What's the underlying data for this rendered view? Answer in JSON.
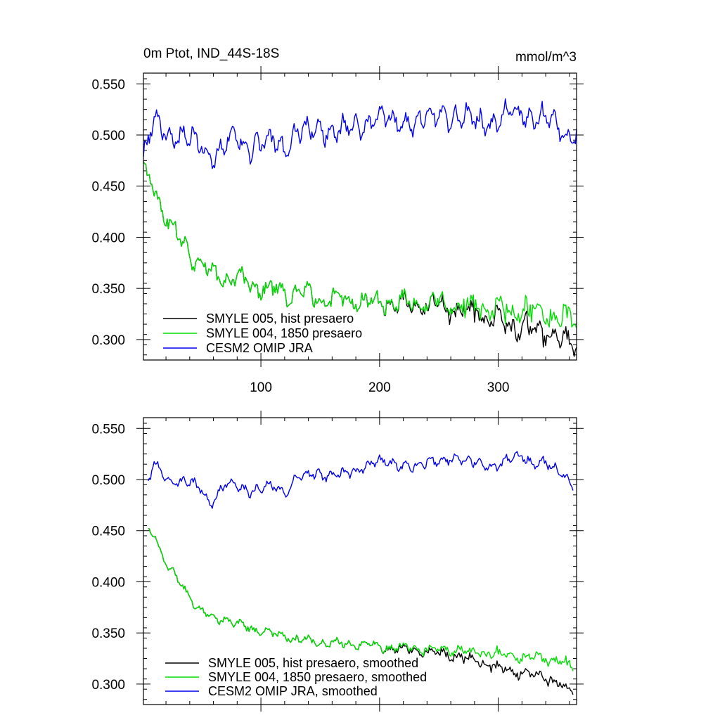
{
  "colors": {
    "hist": "#000000",
    "c1850": "#00dd00",
    "omip": "#0000ee"
  },
  "chart_data": [
    {
      "type": "line",
      "title": "0m Ptot, IND_44S-18S",
      "units": "mmol/m^3",
      "xlim": [
        1,
        366
      ],
      "ylim": [
        0.28,
        0.5605
      ],
      "yticks": [
        0.3,
        0.35,
        0.4,
        0.45,
        0.5,
        0.55
      ],
      "ytick_labels": [
        "0.300",
        "0.350",
        "0.400",
        "0.450",
        "0.500",
        "0.550"
      ],
      "xticks": [
        100,
        200,
        300
      ],
      "xtick_labels": [
        "100",
        "200",
        "300"
      ],
      "legend_position": "bottom-left",
      "series": [
        {
          "name": "SMYLE 005, hist presaero",
          "color": "#000000",
          "anchors": [
            [
              1,
              0.462
            ],
            [
              10,
              0.45
            ],
            [
              20,
              0.42
            ],
            [
              30,
              0.4
            ],
            [
              40,
              0.385
            ],
            [
              50,
              0.372
            ],
            [
              60,
              0.365
            ],
            [
              70,
              0.362
            ],
            [
              80,
              0.358
            ],
            [
              90,
              0.355
            ],
            [
              100,
              0.352
            ],
            [
              110,
              0.348
            ],
            [
              120,
              0.346
            ],
            [
              130,
              0.344
            ],
            [
              140,
              0.343
            ],
            [
              150,
              0.341
            ],
            [
              160,
              0.34
            ],
            [
              170,
              0.339
            ],
            [
              180,
              0.339
            ],
            [
              190,
              0.338
            ],
            [
              200,
              0.337
            ],
            [
              210,
              0.335
            ],
            [
              220,
              0.334
            ],
            [
              230,
              0.333
            ],
            [
              240,
              0.332
            ],
            [
              250,
              0.331
            ],
            [
              260,
              0.33
            ],
            [
              270,
              0.328
            ],
            [
              280,
              0.325
            ],
            [
              290,
              0.322
            ],
            [
              300,
              0.318
            ],
            [
              310,
              0.315
            ],
            [
              320,
              0.313
            ],
            [
              330,
              0.31
            ],
            [
              340,
              0.306
            ],
            [
              350,
              0.302
            ],
            [
              360,
              0.292
            ],
            [
              366,
              0.295
            ]
          ],
          "noise": 0.009,
          "seed": 1
        },
        {
          "name": "SMYLE 004, 1850 presaero",
          "color": "#00dd00",
          "anchors": [
            [
              1,
              0.462
            ],
            [
              10,
              0.45
            ],
            [
              20,
              0.42
            ],
            [
              30,
              0.4
            ],
            [
              40,
              0.385
            ],
            [
              50,
              0.372
            ],
            [
              60,
              0.365
            ],
            [
              70,
              0.362
            ],
            [
              80,
              0.358
            ],
            [
              90,
              0.355
            ],
            [
              100,
              0.352
            ],
            [
              110,
              0.348
            ],
            [
              120,
              0.346
            ],
            [
              130,
              0.344
            ],
            [
              140,
              0.343
            ],
            [
              150,
              0.341
            ],
            [
              160,
              0.34
            ],
            [
              170,
              0.339
            ],
            [
              180,
              0.339
            ],
            [
              190,
              0.338
            ],
            [
              200,
              0.337
            ],
            [
              210,
              0.336
            ],
            [
              220,
              0.336
            ],
            [
              230,
              0.335
            ],
            [
              240,
              0.334
            ],
            [
              250,
              0.334
            ],
            [
              260,
              0.333
            ],
            [
              270,
              0.332
            ],
            [
              280,
              0.331
            ],
            [
              290,
              0.33
            ],
            [
              300,
              0.329
            ],
            [
              310,
              0.328
            ],
            [
              320,
              0.327
            ],
            [
              330,
              0.326
            ],
            [
              340,
              0.324
            ],
            [
              350,
              0.322
            ],
            [
              360,
              0.318
            ],
            [
              366,
              0.32
            ]
          ],
          "noise": 0.009,
          "seed": 2
        },
        {
          "name": "CESM2 OMIP JRA",
          "color": "#0000ee",
          "anchors": [
            [
              1,
              0.478
            ],
            [
              10,
              0.515
            ],
            [
              20,
              0.502
            ],
            [
              30,
              0.498
            ],
            [
              40,
              0.497
            ],
            [
              50,
              0.49
            ],
            [
              60,
              0.48
            ],
            [
              70,
              0.492
            ],
            [
              80,
              0.495
            ],
            [
              90,
              0.49
            ],
            [
              100,
              0.492
            ],
            [
              110,
              0.494
            ],
            [
              120,
              0.488
            ],
            [
              130,
              0.505
            ],
            [
              140,
              0.503
            ],
            [
              150,
              0.505
            ],
            [
              160,
              0.505
            ],
            [
              170,
              0.505
            ],
            [
              180,
              0.505
            ],
            [
              190,
              0.515
            ],
            [
              200,
              0.518
            ],
            [
              210,
              0.512
            ],
            [
              220,
              0.515
            ],
            [
              230,
              0.513
            ],
            [
              240,
              0.515
            ],
            [
              250,
              0.52
            ],
            [
              260,
              0.52
            ],
            [
              270,
              0.515
            ],
            [
              280,
              0.515
            ],
            [
              290,
              0.515
            ],
            [
              300,
              0.512
            ],
            [
              310,
              0.522
            ],
            [
              320,
              0.525
            ],
            [
              330,
              0.515
            ],
            [
              340,
              0.515
            ],
            [
              350,
              0.51
            ],
            [
              360,
              0.5
            ],
            [
              366,
              0.5
            ]
          ],
          "noise": 0.011,
          "seed": 3
        }
      ]
    },
    {
      "type": "line",
      "xlim": [
        1,
        366
      ],
      "ylim": [
        0.28,
        0.5605
      ],
      "yticks": [
        0.3,
        0.35,
        0.4,
        0.45,
        0.5,
        0.55
      ],
      "ytick_labels": [
        "0.300",
        "0.350",
        "0.400",
        "0.450",
        "0.500",
        "0.550"
      ],
      "xticks": [
        100,
        200,
        300
      ],
      "legend_position": "bottom-left",
      "series": [
        {
          "name": "SMYLE 005, hist presaero, smoothed",
          "color": "#000000",
          "anchors": [
            [
              5,
              0.452
            ],
            [
              10,
              0.447
            ],
            [
              20,
              0.418
            ],
            [
              30,
              0.402
            ],
            [
              40,
              0.385
            ],
            [
              50,
              0.372
            ],
            [
              60,
              0.362
            ],
            [
              70,
              0.365
            ],
            [
              80,
              0.358
            ],
            [
              90,
              0.355
            ],
            [
              100,
              0.352
            ],
            [
              110,
              0.349
            ],
            [
              120,
              0.347
            ],
            [
              130,
              0.344
            ],
            [
              140,
              0.343
            ],
            [
              150,
              0.341
            ],
            [
              160,
              0.34
            ],
            [
              170,
              0.339
            ],
            [
              180,
              0.339
            ],
            [
              190,
              0.338
            ],
            [
              200,
              0.337
            ],
            [
              210,
              0.335
            ],
            [
              220,
              0.334
            ],
            [
              230,
              0.333
            ],
            [
              240,
              0.332
            ],
            [
              250,
              0.33
            ],
            [
              260,
              0.328
            ],
            [
              270,
              0.326
            ],
            [
              280,
              0.323
            ],
            [
              290,
              0.32
            ],
            [
              300,
              0.316
            ],
            [
              310,
              0.313
            ],
            [
              320,
              0.312
            ],
            [
              330,
              0.31
            ],
            [
              340,
              0.306
            ],
            [
              350,
              0.302
            ],
            [
              360,
              0.293
            ],
            [
              363,
              0.29
            ]
          ],
          "noise": 0.004,
          "seed": 4
        },
        {
          "name": "SMYLE 004, 1850 presaero, smoothed",
          "color": "#00dd00",
          "anchors": [
            [
              5,
              0.452
            ],
            [
              10,
              0.447
            ],
            [
              20,
              0.418
            ],
            [
              30,
              0.402
            ],
            [
              40,
              0.385
            ],
            [
              50,
              0.372
            ],
            [
              60,
              0.362
            ],
            [
              70,
              0.365
            ],
            [
              80,
              0.358
            ],
            [
              90,
              0.355
            ],
            [
              100,
              0.352
            ],
            [
              110,
              0.349
            ],
            [
              120,
              0.347
            ],
            [
              130,
              0.344
            ],
            [
              140,
              0.343
            ],
            [
              150,
              0.341
            ],
            [
              160,
              0.34
            ],
            [
              170,
              0.339
            ],
            [
              180,
              0.339
            ],
            [
              190,
              0.338
            ],
            [
              200,
              0.337
            ],
            [
              210,
              0.336
            ],
            [
              220,
              0.336
            ],
            [
              230,
              0.335
            ],
            [
              240,
              0.334
            ],
            [
              250,
              0.334
            ],
            [
              260,
              0.333
            ],
            [
              270,
              0.332
            ],
            [
              280,
              0.331
            ],
            [
              290,
              0.33
            ],
            [
              300,
              0.329
            ],
            [
              310,
              0.328
            ],
            [
              320,
              0.327
            ],
            [
              330,
              0.326
            ],
            [
              340,
              0.325
            ],
            [
              350,
              0.323
            ],
            [
              360,
              0.318
            ],
            [
              363,
              0.314
            ]
          ],
          "noise": 0.004,
          "seed": 5
        },
        {
          "name": "CESM2 OMIP JRA, smoothed",
          "color": "#0000ee",
          "anchors": [
            [
              5,
              0.497
            ],
            [
              10,
              0.515
            ],
            [
              20,
              0.502
            ],
            [
              30,
              0.498
            ],
            [
              40,
              0.497
            ],
            [
              50,
              0.49
            ],
            [
              58,
              0.477
            ],
            [
              70,
              0.495
            ],
            [
              80,
              0.492
            ],
            [
              90,
              0.49
            ],
            [
              100,
              0.492
            ],
            [
              110,
              0.492
            ],
            [
              120,
              0.487
            ],
            [
              130,
              0.505
            ],
            [
              140,
              0.503
            ],
            [
              150,
              0.505
            ],
            [
              160,
              0.505
            ],
            [
              170,
              0.505
            ],
            [
              180,
              0.506
            ],
            [
              190,
              0.517
            ],
            [
              200,
              0.518
            ],
            [
              210,
              0.513
            ],
            [
              220,
              0.515
            ],
            [
              230,
              0.513
            ],
            [
              240,
              0.515
            ],
            [
              250,
              0.52
            ],
            [
              260,
              0.522
            ],
            [
              270,
              0.517
            ],
            [
              280,
              0.517
            ],
            [
              290,
              0.515
            ],
            [
              300,
              0.512
            ],
            [
              310,
              0.52
            ],
            [
              320,
              0.525
            ],
            [
              330,
              0.515
            ],
            [
              340,
              0.515
            ],
            [
              350,
              0.51
            ],
            [
              360,
              0.5
            ],
            [
              363,
              0.495
            ]
          ],
          "noise": 0.005,
          "seed": 6
        }
      ]
    }
  ]
}
